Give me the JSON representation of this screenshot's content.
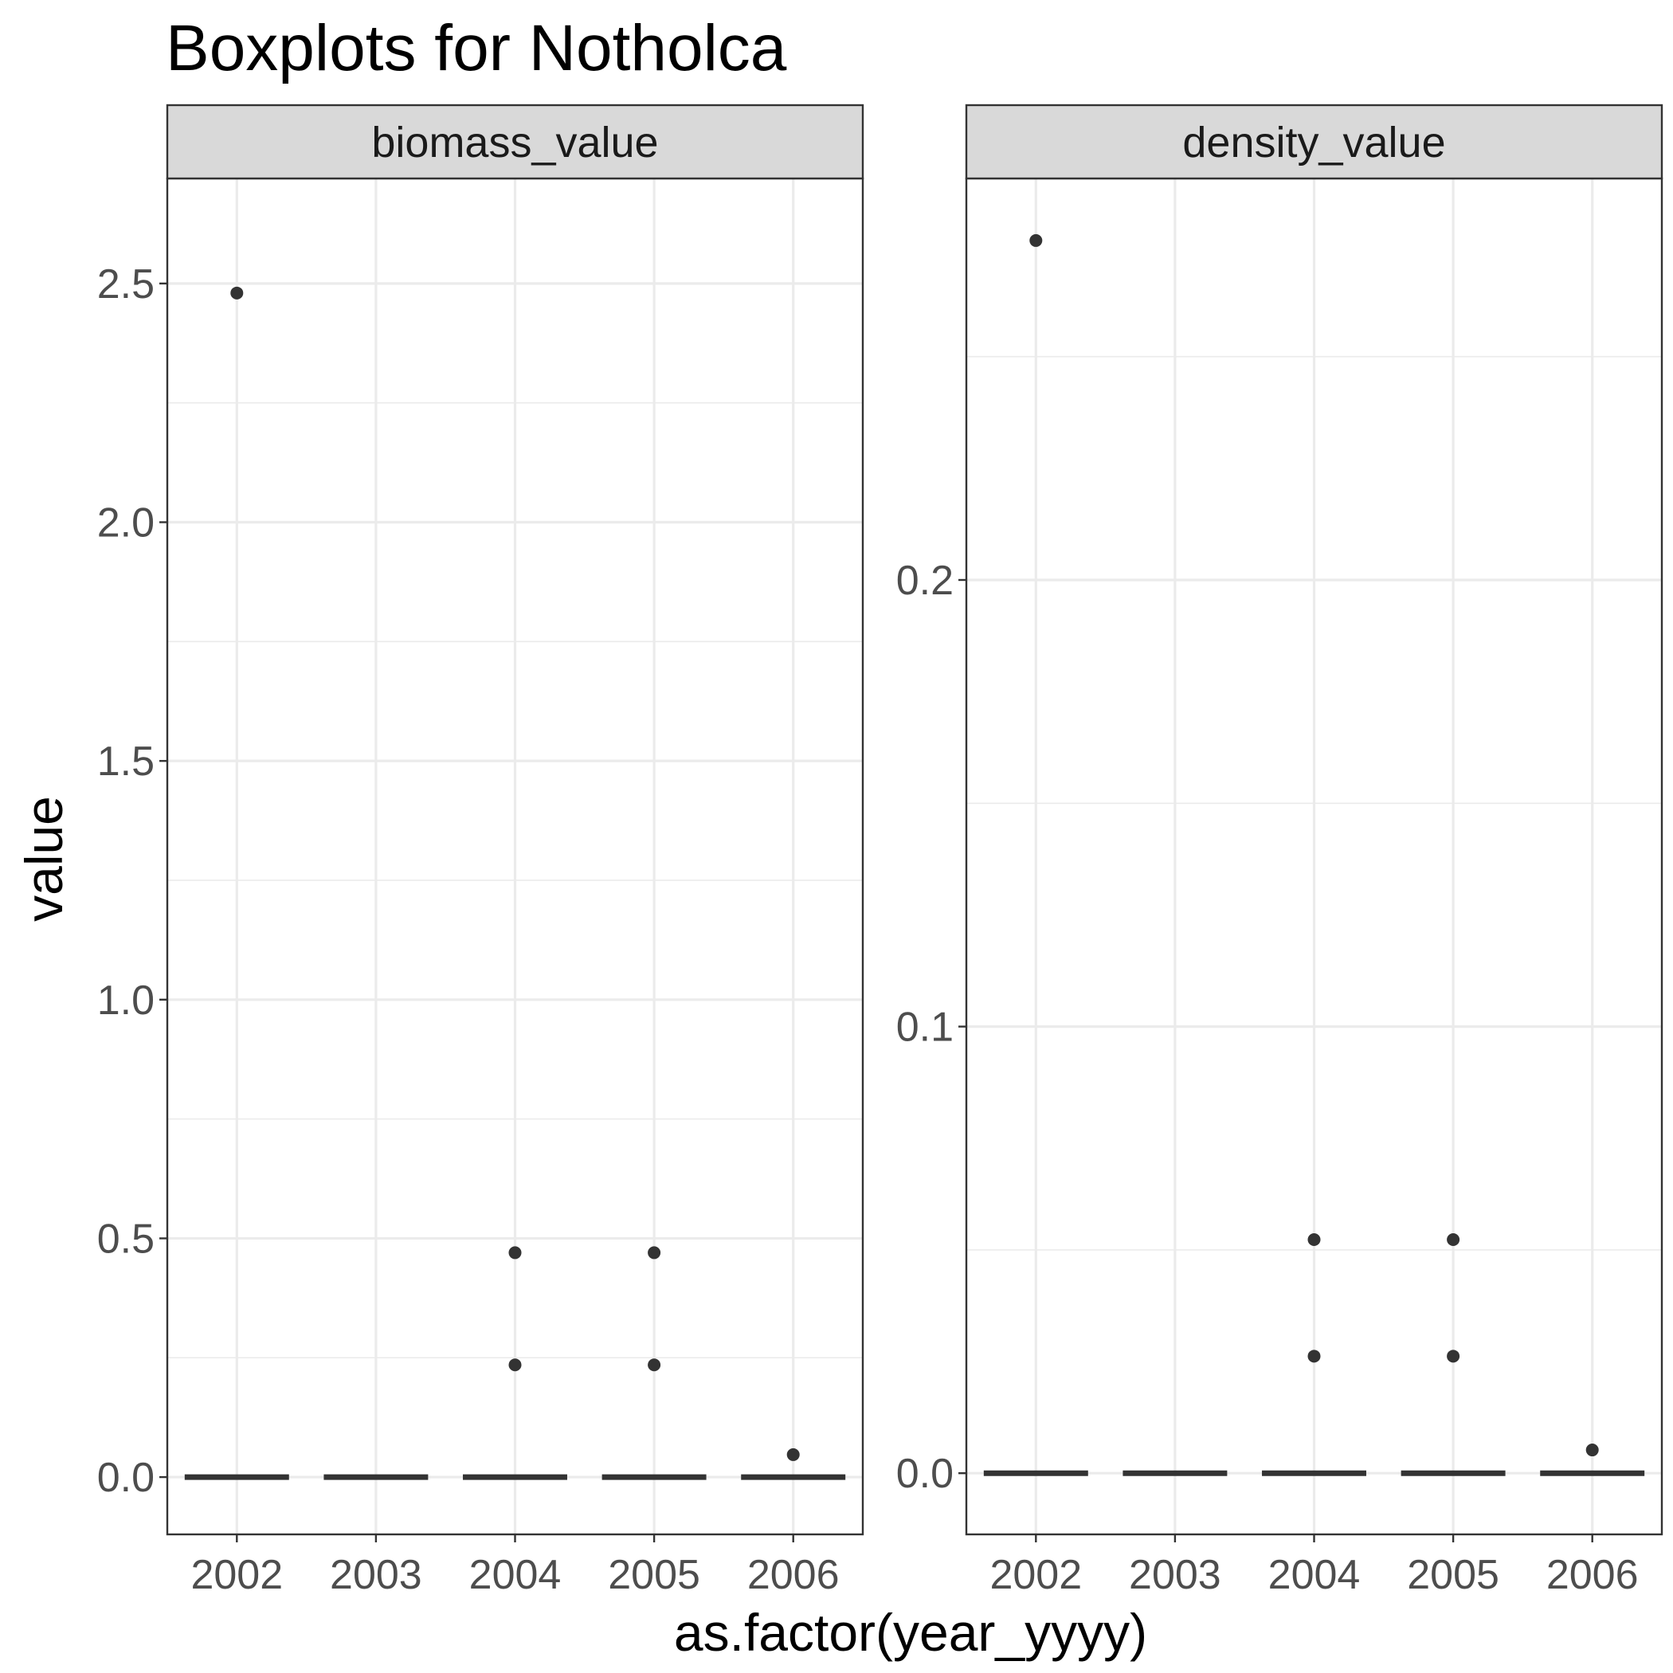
{
  "chart_data": {
    "type": "boxplot",
    "title": "Boxplots for Notholca",
    "xlabel": "as.factor(year_yyyy)",
    "ylabel": "value",
    "categories": [
      "2002",
      "2003",
      "2004",
      "2005",
      "2006"
    ],
    "grid": true,
    "facets": [
      {
        "name": "biomass_value",
        "ylim": [
          -0.12,
          2.72
        ],
        "yticks": [
          0.0,
          0.5,
          1.0,
          1.5,
          2.0,
          2.5
        ],
        "ytick_labels": [
          "0.0",
          "0.5",
          "1.0",
          "1.5",
          "2.0",
          "2.5"
        ],
        "yminor": [
          0.25,
          0.75,
          1.25,
          1.75,
          2.25
        ],
        "boxes": [
          {
            "category": "2002",
            "median": 0,
            "q1": 0,
            "q3": 0,
            "outliers": [
              2.48
            ]
          },
          {
            "category": "2003",
            "median": 0,
            "q1": 0,
            "q3": 0,
            "outliers": []
          },
          {
            "category": "2004",
            "median": 0,
            "q1": 0,
            "q3": 0,
            "outliers": [
              0.47,
              0.235
            ]
          },
          {
            "category": "2005",
            "median": 0,
            "q1": 0,
            "q3": 0,
            "outliers": [
              0.47,
              0.235
            ]
          },
          {
            "category": "2006",
            "median": 0,
            "q1": 0,
            "q3": 0,
            "outliers": [
              0.047
            ]
          }
        ]
      },
      {
        "name": "density_value",
        "ylim": [
          -0.0137,
          0.2899
        ],
        "yticks": [
          0.0,
          0.1,
          0.2
        ],
        "ytick_labels": [
          "0.0",
          "0.1",
          "0.2"
        ],
        "yminor": [
          0.05,
          0.15,
          0.25
        ],
        "boxes": [
          {
            "category": "2002",
            "median": 0,
            "q1": 0,
            "q3": 0,
            "outliers": [
              0.276
            ]
          },
          {
            "category": "2003",
            "median": 0,
            "q1": 0,
            "q3": 0,
            "outliers": []
          },
          {
            "category": "2004",
            "median": 0,
            "q1": 0,
            "q3": 0,
            "outliers": [
              0.0523,
              0.0262
            ]
          },
          {
            "category": "2005",
            "median": 0,
            "q1": 0,
            "q3": 0,
            "outliers": [
              0.0523,
              0.0262
            ]
          },
          {
            "category": "2006",
            "median": 0,
            "q1": 0,
            "q3": 0,
            "outliers": [
              0.0052
            ]
          }
        ]
      }
    ]
  }
}
